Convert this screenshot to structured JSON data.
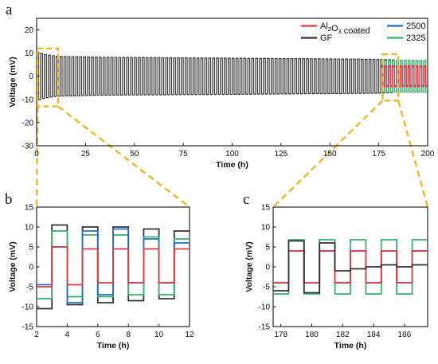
{
  "figure": {
    "panel_labels": [
      "a",
      "b",
      "c"
    ]
  },
  "colors": {
    "al2o3": "#e8383d",
    "gf": "#333333",
    "s2500": "#1f6fd6",
    "s2325": "#34b36b",
    "highlight": "#f2b71e"
  },
  "chart_data": [
    {
      "panel": "a",
      "type": "line",
      "xlabel": "Time (h)",
      "ylabel": "Voltage (mV)",
      "xlim": [
        0,
        200
      ],
      "ylim": [
        -30,
        25
      ],
      "xticks": [
        0,
        25,
        50,
        75,
        100,
        125,
        150,
        175,
        200
      ],
      "yticks": [
        -30,
        -20,
        -10,
        0,
        10,
        20
      ],
      "grid": false,
      "legend_position": "top-right",
      "legend": [
        {
          "key": "al2o3",
          "prefix": "Al",
          "sub1": "2",
          "mid": "O",
          "sub2": "3",
          "suffix": " coated"
        },
        {
          "key": "s2500",
          "label": "2500"
        },
        {
          "key": "gf",
          "label": "GF"
        },
        {
          "key": "s2325",
          "label": "2325"
        }
      ],
      "series": [
        {
          "key": "gf",
          "cycle_period_h": 2,
          "end_h": 183,
          "envelope": [
            [
              0,
              10.5
            ],
            [
              3,
              9.5
            ],
            [
              10,
              8.6
            ],
            [
              30,
              8.2
            ],
            [
              100,
              7.8
            ],
            [
              175,
              7.3
            ],
            [
              183,
              7.0
            ]
          ]
        },
        {
          "key": "al2o3",
          "cycle_period_h": 2,
          "start_h": 176,
          "end_h": 200,
          "amplitude": 4.5
        },
        {
          "key": "s2325",
          "cycle_period_h": 2,
          "start_h": 176,
          "end_h": 200,
          "amplitude": 6.8
        },
        {
          "key": "s2500",
          "cycle_period_h": 2,
          "start_h": 176,
          "end_h": 200,
          "amplitude": 4.0
        }
      ]
    },
    {
      "panel": "b",
      "type": "line",
      "xlabel": "Time (h)",
      "ylabel": "Voltage (mV)",
      "xlim": [
        2,
        12
      ],
      "ylim": [
        -15,
        15
      ],
      "xticks": [
        2,
        4,
        6,
        8,
        10,
        12
      ],
      "yticks": [
        -15,
        -10,
        -5,
        0,
        5,
        10,
        15
      ],
      "half_cycle_h": 1,
      "first_switch_h": 3,
      "series": [
        {
          "key": "gf",
          "high": [
            10.5,
            10.0,
            10.0,
            9.5,
            9.0
          ],
          "low": [
            -10.5,
            -9.5,
            -9.0,
            -8.5,
            -8.0
          ]
        },
        {
          "key": "s2325",
          "high": [
            9.0,
            8.0,
            8.0,
            7.5,
            7.0
          ],
          "low": [
            -8.0,
            -7.5,
            -7.5,
            -7.0,
            -7.0
          ]
        },
        {
          "key": "s2500",
          "high": [
            5.0,
            9.0,
            9.5,
            7.0,
            6.0
          ],
          "low": [
            -4.5,
            -9.0,
            -7.0,
            -4.0,
            -4.0
          ]
        },
        {
          "key": "al2o3",
          "high": [
            5.0,
            4.5,
            4.5,
            4.5,
            4.5
          ],
          "low": [
            -5.0,
            -4.5,
            -4.0,
            -4.0,
            -4.0
          ]
        }
      ]
    },
    {
      "panel": "c",
      "type": "line",
      "xlabel": "Time (h)",
      "ylabel": "Voltage (mV)",
      "xlim": [
        177.5,
        187.5
      ],
      "ylim": [
        -15,
        15
      ],
      "xticks": [
        178,
        180,
        182,
        184,
        186
      ],
      "yticks": [
        -15,
        -10,
        -5,
        0,
        5,
        10,
        15
      ],
      "half_cycle_h": 1,
      "first_switch_h": 178.5,
      "series": [
        {
          "key": "s2325",
          "high": [
            6.8,
            6.8,
            6.8,
            6.8,
            6.8
          ],
          "low": [
            -6.8,
            -6.8,
            -6.8,
            -6.8,
            -6.8
          ]
        },
        {
          "key": "s2500",
          "high": [
            4.0,
            4.0,
            4.0,
            4.0,
            4.0
          ],
          "low": [
            -4.0,
            -4.0,
            -4.0,
            -4.0,
            -4.0
          ]
        },
        {
          "key": "al2o3",
          "high": [
            4.0,
            4.0,
            4.0,
            4.0,
            4.0
          ],
          "low": [
            -4.0,
            -4.0,
            -4.0,
            -4.0,
            -4.0
          ]
        },
        {
          "key": "gf",
          "high": [
            6.5,
            6.0,
            -0.5,
            0.5,
            0.5
          ],
          "low": [
            -6.0,
            -6.5,
            -1.0,
            0.0,
            0.0
          ]
        }
      ]
    }
  ]
}
